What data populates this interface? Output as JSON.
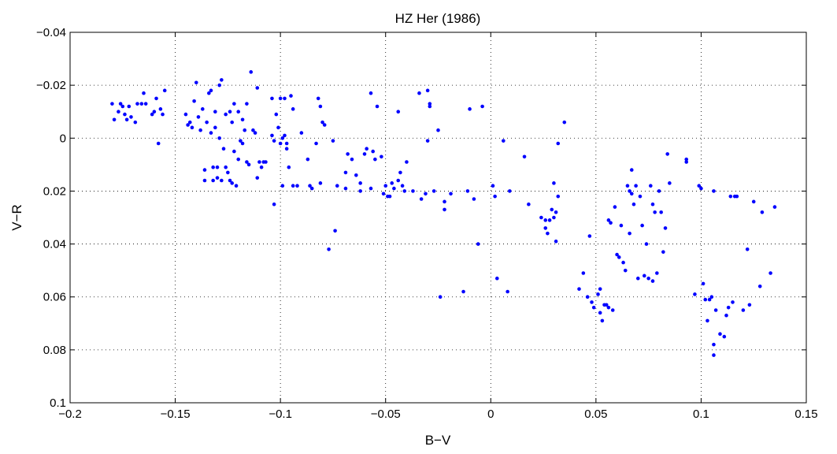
{
  "chart_data": {
    "type": "scatter",
    "title": "HZ Her (1986)",
    "xlabel": "B−V",
    "ylabel": "V−R",
    "xlim": [
      -0.2,
      0.15
    ],
    "ylim": [
      0.1,
      -0.04
    ],
    "y_axis_inverted": true,
    "grid": true,
    "grid_style": "dotted",
    "point_color": "#0000ff",
    "x_tick_labels": [
      "−0.2",
      "−0.15",
      "−0.1",
      "−0.05",
      "0",
      "0.05",
      "0.1",
      "0.15"
    ],
    "x_tick_values": [
      -0.2,
      -0.15,
      -0.1,
      -0.05,
      0,
      0.05,
      0.1,
      0.15
    ],
    "y_tick_labels": [
      "−0.04",
      "−0.02",
      "0",
      "0.02",
      "0.04",
      "0.06",
      "0.08",
      "0.1"
    ],
    "y_tick_values": [
      -0.04,
      -0.02,
      0,
      0.02,
      0.04,
      0.06,
      0.08,
      0.1
    ],
    "series": [
      {
        "points": [
          [
            -0.18,
            -0.013
          ],
          [
            -0.179,
            -0.007
          ],
          [
            -0.177,
            -0.01
          ],
          [
            -0.176,
            -0.013
          ],
          [
            -0.175,
            -0.012
          ],
          [
            -0.174,
            -0.009
          ],
          [
            -0.173,
            -0.007
          ],
          [
            -0.172,
            -0.012
          ],
          [
            -0.171,
            -0.008
          ],
          [
            -0.169,
            -0.006
          ],
          [
            -0.168,
            -0.013
          ],
          [
            -0.166,
            -0.013
          ],
          [
            -0.165,
            -0.017
          ],
          [
            -0.164,
            -0.013
          ],
          [
            -0.161,
            -0.009
          ],
          [
            -0.16,
            -0.01
          ],
          [
            -0.159,
            -0.015
          ],
          [
            -0.158,
            0.002
          ],
          [
            -0.157,
            -0.011
          ],
          [
            -0.156,
            -0.009
          ],
          [
            -0.155,
            -0.018
          ],
          [
            -0.145,
            -0.009
          ],
          [
            -0.144,
            -0.005
          ],
          [
            -0.143,
            -0.006
          ],
          [
            -0.142,
            -0.004
          ],
          [
            -0.141,
            -0.014
          ],
          [
            -0.14,
            -0.021
          ],
          [
            -0.139,
            -0.008
          ],
          [
            -0.138,
            -0.003
          ],
          [
            -0.137,
            -0.011
          ],
          [
            -0.136,
            0.012
          ],
          [
            -0.136,
            0.016
          ],
          [
            -0.135,
            -0.006
          ],
          [
            -0.134,
            -0.017
          ],
          [
            -0.133,
            -0.018
          ],
          [
            -0.133,
            -0.002
          ],
          [
            -0.132,
            0.011
          ],
          [
            -0.132,
            0.016
          ],
          [
            -0.131,
            -0.01
          ],
          [
            -0.131,
            -0.004
          ],
          [
            -0.13,
            0.011
          ],
          [
            -0.13,
            0.015
          ],
          [
            -0.129,
            -0.02
          ],
          [
            -0.129,
            0.0
          ],
          [
            -0.128,
            -0.022
          ],
          [
            -0.128,
            0.016
          ],
          [
            -0.127,
            0.004
          ],
          [
            -0.126,
            -0.009
          ],
          [
            -0.126,
            0.011
          ],
          [
            -0.125,
            0.013
          ],
          [
            -0.124,
            -0.01
          ],
          [
            -0.124,
            0.016
          ],
          [
            -0.123,
            0.017
          ],
          [
            -0.123,
            -0.006
          ],
          [
            -0.122,
            0.005
          ],
          [
            -0.122,
            -0.013
          ],
          [
            -0.121,
            0.018
          ],
          [
            -0.12,
            -0.01
          ],
          [
            -0.12,
            0.008
          ],
          [
            -0.119,
            0.001
          ],
          [
            -0.118,
            -0.007
          ],
          [
            -0.118,
            0.002
          ],
          [
            -0.117,
            -0.003
          ],
          [
            -0.116,
            0.009
          ],
          [
            -0.116,
            -0.013
          ],
          [
            -0.115,
            0.01
          ],
          [
            -0.114,
            -0.025
          ],
          [
            -0.113,
            -0.003
          ],
          [
            -0.112,
            -0.002
          ],
          [
            -0.111,
            -0.019
          ],
          [
            -0.111,
            0.015
          ],
          [
            -0.11,
            0.009
          ],
          [
            -0.109,
            0.011
          ],
          [
            -0.108,
            0.009
          ],
          [
            -0.107,
            0.009
          ],
          [
            -0.104,
            -0.015
          ],
          [
            -0.104,
            -0.001
          ],
          [
            -0.103,
            0.001
          ],
          [
            -0.103,
            0.025
          ],
          [
            -0.102,
            -0.009
          ],
          [
            -0.101,
            -0.004
          ],
          [
            -0.1,
            -0.015
          ],
          [
            -0.1,
            0.002
          ],
          [
            -0.099,
            0.0
          ],
          [
            -0.099,
            0.018
          ],
          [
            -0.098,
            -0.015
          ],
          [
            -0.098,
            -0.001
          ],
          [
            -0.097,
            0.002
          ],
          [
            -0.097,
            0.004
          ],
          [
            -0.096,
            0.011
          ],
          [
            -0.095,
            -0.016
          ],
          [
            -0.094,
            -0.011
          ],
          [
            -0.094,
            0.018
          ],
          [
            -0.092,
            0.018
          ],
          [
            -0.09,
            -0.002
          ],
          [
            -0.087,
            0.008
          ],
          [
            -0.086,
            0.018
          ],
          [
            -0.085,
            0.019
          ],
          [
            -0.083,
            0.002
          ],
          [
            -0.082,
            -0.015
          ],
          [
            -0.081,
            -0.012
          ],
          [
            -0.081,
            0.017
          ],
          [
            -0.08,
            -0.006
          ],
          [
            -0.079,
            -0.005
          ],
          [
            -0.077,
            0.042
          ],
          [
            -0.075,
            0.001
          ],
          [
            -0.074,
            0.035
          ],
          [
            -0.073,
            0.018
          ],
          [
            -0.069,
            0.013
          ],
          [
            -0.069,
            0.019
          ],
          [
            -0.068,
            0.006
          ],
          [
            -0.066,
            0.008
          ],
          [
            -0.064,
            0.014
          ],
          [
            -0.062,
            0.017
          ],
          [
            -0.062,
            0.02
          ],
          [
            -0.06,
            0.006
          ],
          [
            -0.059,
            0.004
          ],
          [
            -0.057,
            0.019
          ],
          [
            -0.057,
            -0.017
          ],
          [
            -0.056,
            0.005
          ],
          [
            -0.055,
            0.008
          ],
          [
            -0.054,
            -0.012
          ],
          [
            -0.052,
            0.007
          ],
          [
            -0.051,
            0.021
          ],
          [
            -0.05,
            0.018
          ],
          [
            -0.049,
            0.022
          ],
          [
            -0.048,
            0.022
          ],
          [
            -0.047,
            0.017
          ],
          [
            -0.046,
            0.019
          ],
          [
            -0.044,
            0.016
          ],
          [
            -0.044,
            -0.01
          ],
          [
            -0.043,
            0.013
          ],
          [
            -0.042,
            0.018
          ],
          [
            -0.041,
            0.02
          ],
          [
            -0.04,
            0.009
          ],
          [
            -0.037,
            0.02
          ],
          [
            -0.034,
            -0.017
          ],
          [
            -0.033,
            0.023
          ],
          [
            -0.031,
            0.021
          ],
          [
            -0.03,
            -0.018
          ],
          [
            -0.03,
            0.001
          ],
          [
            -0.029,
            -0.013
          ],
          [
            -0.029,
            -0.012
          ],
          [
            -0.027,
            0.02
          ],
          [
            -0.025,
            -0.003
          ],
          [
            -0.024,
            0.06
          ],
          [
            -0.022,
            0.024
          ],
          [
            -0.022,
            0.027
          ],
          [
            -0.019,
            0.021
          ],
          [
            -0.013,
            0.058
          ],
          [
            -0.011,
            0.02
          ],
          [
            -0.01,
            -0.011
          ],
          [
            -0.008,
            0.023
          ],
          [
            -0.006,
            0.04
          ],
          [
            -0.004,
            -0.012
          ],
          [
            0.001,
            0.018
          ],
          [
            0.002,
            0.022
          ],
          [
            0.003,
            0.053
          ],
          [
            0.006,
            0.001
          ],
          [
            0.008,
            0.058
          ],
          [
            0.009,
            0.02
          ],
          [
            0.016,
            0.007
          ],
          [
            0.018,
            0.025
          ],
          [
            0.024,
            0.03
          ],
          [
            0.026,
            0.031
          ],
          [
            0.026,
            0.034
          ],
          [
            0.027,
            0.036
          ],
          [
            0.028,
            0.031
          ],
          [
            0.029,
            0.027
          ],
          [
            0.03,
            0.017
          ],
          [
            0.03,
            0.03
          ],
          [
            0.031,
            0.028
          ],
          [
            0.032,
            0.022
          ],
          [
            0.031,
            0.039
          ],
          [
            0.032,
            0.002
          ],
          [
            0.035,
            -0.006
          ],
          [
            0.042,
            0.057
          ],
          [
            0.044,
            0.051
          ],
          [
            0.046,
            0.06
          ],
          [
            0.047,
            0.037
          ],
          [
            0.048,
            0.062
          ],
          [
            0.049,
            0.064
          ],
          [
            0.051,
            0.059
          ],
          [
            0.052,
            0.057
          ],
          [
            0.052,
            0.066
          ],
          [
            0.053,
            0.069
          ],
          [
            0.054,
            0.063
          ],
          [
            0.055,
            0.063
          ],
          [
            0.056,
            0.031
          ],
          [
            0.056,
            0.064
          ],
          [
            0.057,
            0.032
          ],
          [
            0.058,
            0.065
          ],
          [
            0.059,
            0.026
          ],
          [
            0.06,
            0.044
          ],
          [
            0.061,
            0.045
          ],
          [
            0.062,
            0.033
          ],
          [
            0.063,
            0.047
          ],
          [
            0.064,
            0.05
          ],
          [
            0.065,
            0.018
          ],
          [
            0.066,
            0.02
          ],
          [
            0.066,
            0.036
          ],
          [
            0.067,
            0.012
          ],
          [
            0.067,
            0.021
          ],
          [
            0.068,
            0.025
          ],
          [
            0.069,
            0.018
          ],
          [
            0.07,
            0.053
          ],
          [
            0.071,
            0.022
          ],
          [
            0.072,
            0.033
          ],
          [
            0.073,
            0.052
          ],
          [
            0.074,
            0.04
          ],
          [
            0.075,
            0.053
          ],
          [
            0.076,
            0.018
          ],
          [
            0.077,
            0.025
          ],
          [
            0.077,
            0.054
          ],
          [
            0.078,
            0.028
          ],
          [
            0.079,
            0.051
          ],
          [
            0.08,
            0.02
          ],
          [
            0.081,
            0.028
          ],
          [
            0.082,
            0.043
          ],
          [
            0.083,
            0.034
          ],
          [
            0.084,
            0.006
          ],
          [
            0.085,
            0.017
          ],
          [
            0.093,
            0.008
          ],
          [
            0.093,
            0.009
          ],
          [
            0.097,
            0.059
          ],
          [
            0.099,
            0.018
          ],
          [
            0.1,
            0.019
          ],
          [
            0.101,
            0.055
          ],
          [
            0.102,
            0.061
          ],
          [
            0.103,
            0.069
          ],
          [
            0.104,
            0.061
          ],
          [
            0.105,
            0.06
          ],
          [
            0.106,
            0.02
          ],
          [
            0.106,
            0.078
          ],
          [
            0.106,
            0.082
          ],
          [
            0.107,
            0.065
          ],
          [
            0.109,
            0.074
          ],
          [
            0.111,
            0.075
          ],
          [
            0.112,
            0.067
          ],
          [
            0.113,
            0.064
          ],
          [
            0.114,
            0.022
          ],
          [
            0.115,
            0.062
          ],
          [
            0.116,
            0.022
          ],
          [
            0.117,
            0.022
          ],
          [
            0.12,
            0.065
          ],
          [
            0.122,
            0.042
          ],
          [
            0.123,
            0.063
          ],
          [
            0.125,
            0.024
          ],
          [
            0.128,
            0.056
          ],
          [
            0.129,
            0.028
          ],
          [
            0.133,
            0.051
          ],
          [
            0.135,
            0.026
          ]
        ]
      }
    ]
  }
}
